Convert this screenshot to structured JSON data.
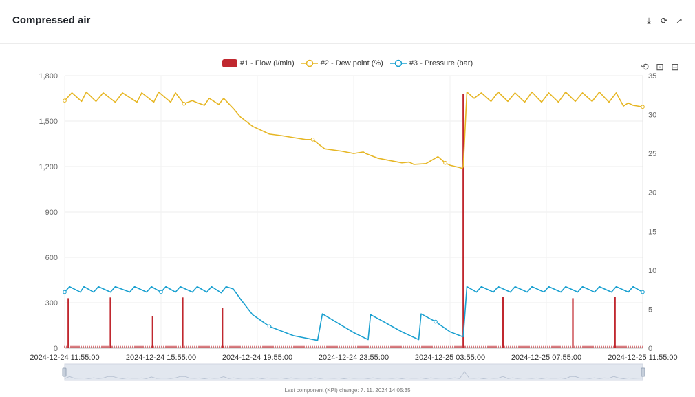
{
  "header": {
    "title": "Compressed air",
    "icons": [
      "download-icon",
      "refresh-icon",
      "expand-icon"
    ]
  },
  "toolbox": [
    "restore-icon",
    "zoom-icon",
    "zoom-reset-icon"
  ],
  "footer": {
    "text": "Last component (KPI) change: 7. 11. 2024 14:05:35"
  },
  "colors": {
    "flow": "#c0282f",
    "dew": "#e6b624",
    "pressure": "#1aa0d0"
  },
  "chart_data": {
    "type": "line",
    "legend": [
      "#1 - Flow (l/min)",
      "#2 - Dew point (%)",
      "#3 - Pressure (bar)"
    ],
    "legend_position": "top-center",
    "x_tick_labels": [
      "2024-12-24 11:55:00",
      "2024-12-24 15:55:00",
      "2024-12-24 19:55:00",
      "2024-12-24 23:55:00",
      "2024-12-25 03:55:00",
      "2024-12-25 07:55:00",
      "2024-12-25 11:55:00"
    ],
    "x_range_hours": [
      0,
      24
    ],
    "y_left": {
      "ticks": [
        0,
        300,
        600,
        900,
        1200,
        1500,
        1800
      ],
      "ylim": [
        0,
        1800
      ]
    },
    "y_right": {
      "ticks": [
        0,
        5,
        10,
        15,
        20,
        25,
        30,
        35
      ],
      "ylim": [
        0,
        35
      ]
    },
    "grid": true,
    "series": [
      {
        "name": "#1 - Flow (l/min)",
        "type": "bar",
        "axis": "left",
        "baseline": 15,
        "spikes": [
          {
            "x": 0.15,
            "y": 330
          },
          {
            "x": 1.9,
            "y": 335
          },
          {
            "x": 3.65,
            "y": 210
          },
          {
            "x": 4.9,
            "y": 335
          },
          {
            "x": 6.55,
            "y": 265
          },
          {
            "x": 16.55,
            "y": 1680
          },
          {
            "x": 18.2,
            "y": 340
          },
          {
            "x": 21.1,
            "y": 330
          },
          {
            "x": 22.85,
            "y": 340
          }
        ]
      },
      {
        "name": "#2 - Dew point (%)",
        "type": "line",
        "axis": "right",
        "x": [
          0,
          0.3,
          0.7,
          0.9,
          1.3,
          1.6,
          2.1,
          2.4,
          3.0,
          3.2,
          3.7,
          3.9,
          4.4,
          4.6,
          4.95,
          5.3,
          5.45,
          5.8,
          6.0,
          6.4,
          6.6,
          7.0,
          7.3,
          7.8,
          8.5,
          9.0,
          9.6,
          10.0,
          10.3,
          10.5,
          10.8,
          11.5,
          12.0,
          12.4,
          12.5,
          13.0,
          13.5,
          14.0,
          14.3,
          14.5,
          15.0,
          15.5,
          15.8,
          16.0,
          16.4,
          16.5,
          16.55,
          16.7,
          17.0,
          17.3,
          17.7,
          18.0,
          18.4,
          18.7,
          19.1,
          19.4,
          19.8,
          20.1,
          20.5,
          20.8,
          21.2,
          21.5,
          21.9,
          22.2,
          22.6,
          22.9,
          23.2,
          23.4,
          23.6,
          24.0
        ],
        "y": [
          31.8,
          32.8,
          31.7,
          32.9,
          31.7,
          32.8,
          31.6,
          32.8,
          31.6,
          32.8,
          31.6,
          32.9,
          31.6,
          32.8,
          31.4,
          31.8,
          31.6,
          31.2,
          32.1,
          31.3,
          32.1,
          30.8,
          29.7,
          28.5,
          27.5,
          27.3,
          27.0,
          26.8,
          26.8,
          26.3,
          25.6,
          25.3,
          25.0,
          25.2,
          25.0,
          24.4,
          24.1,
          23.8,
          23.9,
          23.6,
          23.7,
          24.6,
          23.8,
          23.5,
          23.2,
          23.1,
          23.3,
          32.9,
          32.1,
          32.8,
          31.7,
          32.9,
          31.7,
          32.8,
          31.6,
          32.9,
          31.6,
          32.8,
          31.6,
          32.9,
          31.7,
          32.8,
          31.7,
          32.9,
          31.6,
          32.8,
          31.1,
          31.5,
          31.2,
          31.0
        ]
      },
      {
        "name": "#3 - Pressure (bar)",
        "type": "line",
        "axis": "right",
        "x": [
          0,
          0.2,
          0.65,
          0.8,
          1.2,
          1.4,
          1.9,
          2.1,
          2.7,
          2.9,
          3.4,
          3.6,
          4.0,
          4.2,
          4.6,
          4.8,
          5.3,
          5.5,
          5.9,
          6.1,
          6.5,
          6.7,
          7.0,
          7.3,
          7.8,
          8.5,
          9.5,
          10.5,
          10.7,
          11.3,
          12.0,
          12.6,
          12.7,
          13.3,
          14.0,
          14.7,
          14.8,
          15.4,
          16.0,
          16.5,
          16.55,
          16.7,
          17.1,
          17.3,
          17.8,
          18.0,
          18.5,
          18.7,
          19.2,
          19.4,
          19.9,
          20.1,
          20.6,
          20.8,
          21.3,
          21.5,
          22.0,
          22.2,
          22.7,
          22.9,
          23.4,
          23.6,
          24.0
        ],
        "y": [
          7.2,
          7.9,
          7.2,
          7.9,
          7.2,
          7.9,
          7.2,
          7.9,
          7.2,
          7.9,
          7.2,
          7.9,
          7.2,
          7.9,
          7.2,
          7.9,
          7.2,
          7.9,
          7.2,
          7.9,
          7.1,
          7.9,
          7.6,
          6.3,
          4.3,
          2.8,
          1.6,
          1.0,
          4.4,
          3.3,
          2.0,
          1.1,
          4.3,
          3.3,
          2.1,
          1.1,
          4.4,
          3.4,
          2.1,
          1.5,
          1.5,
          7.9,
          7.2,
          7.9,
          7.2,
          7.9,
          7.2,
          7.9,
          7.2,
          7.9,
          7.2,
          7.9,
          7.2,
          7.9,
          7.2,
          7.9,
          7.2,
          7.9,
          7.2,
          7.9,
          7.2,
          7.9,
          7.2
        ]
      }
    ]
  }
}
